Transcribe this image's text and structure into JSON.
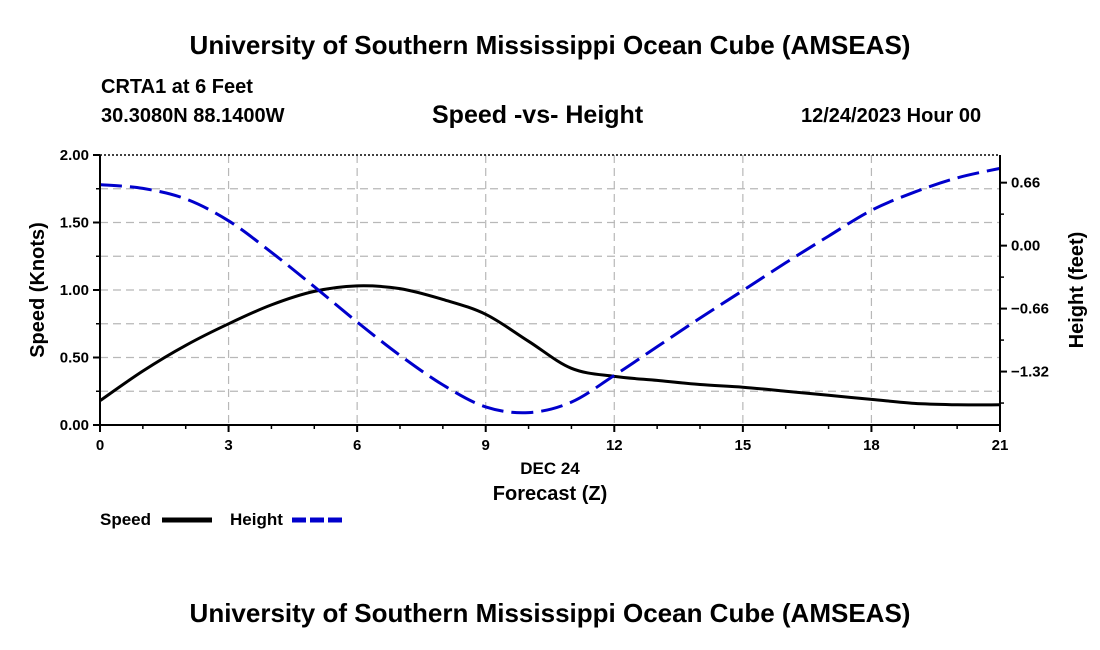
{
  "header": {
    "title": "University of Southern Mississippi Ocean Cube (AMSEAS)",
    "station": "CRTA1 at 6 Feet",
    "coords": "30.3080N  88.1400W",
    "date": "12/24/2023 Hour 00"
  },
  "footer": {
    "title": "University of Southern Mississippi Ocean Cube (AMSEAS)"
  },
  "chart_data": {
    "type": "line",
    "title": "Speed -vs- Height",
    "xlabel": "Forecast (Z)",
    "xsublabel": "DEC 24",
    "ylabel": "Speed (Knots)",
    "y2label": "Height (feet)",
    "xlim": [
      0,
      21
    ],
    "ylim": [
      0,
      2
    ],
    "y2lim": [
      -1.88,
      0.95
    ],
    "xticks": [
      "0",
      "3",
      "6",
      "9",
      "12",
      "15",
      "18",
      "21"
    ],
    "yticks": [
      "0.00",
      "0.50",
      "1.00",
      "1.50",
      "2.00"
    ],
    "y2ticks": [
      "-1.32",
      "-0.66",
      "0.00",
      "0.66"
    ],
    "grid": true,
    "x": [
      0,
      1,
      2,
      3,
      4,
      5,
      6,
      7,
      8,
      9,
      10,
      11,
      12,
      13,
      14,
      15,
      16,
      17,
      18,
      19,
      20,
      21
    ],
    "series": [
      {
        "name": "Speed",
        "axis": "left",
        "color": "#000000",
        "style": "solid",
        "values": [
          0.18,
          0.4,
          0.59,
          0.75,
          0.89,
          0.99,
          1.03,
          1.01,
          0.93,
          0.82,
          0.62,
          0.42,
          0.36,
          0.33,
          0.3,
          0.28,
          0.25,
          0.22,
          0.19,
          0.16,
          0.15,
          0.15
        ]
      },
      {
        "name": "Height",
        "axis": "right",
        "color": "#0000cc",
        "style": "dashed",
        "values": [
          0.64,
          0.6,
          0.49,
          0.26,
          -0.07,
          -0.43,
          -0.8,
          -1.15,
          -1.46,
          -1.69,
          -1.75,
          -1.64,
          -1.36,
          -1.06,
          -0.76,
          -0.47,
          -0.18,
          0.1,
          0.37,
          0.56,
          0.71,
          0.81
        ]
      }
    ],
    "legend": {
      "placement": "bottom-left",
      "items": [
        "Speed",
        "Height"
      ]
    }
  }
}
